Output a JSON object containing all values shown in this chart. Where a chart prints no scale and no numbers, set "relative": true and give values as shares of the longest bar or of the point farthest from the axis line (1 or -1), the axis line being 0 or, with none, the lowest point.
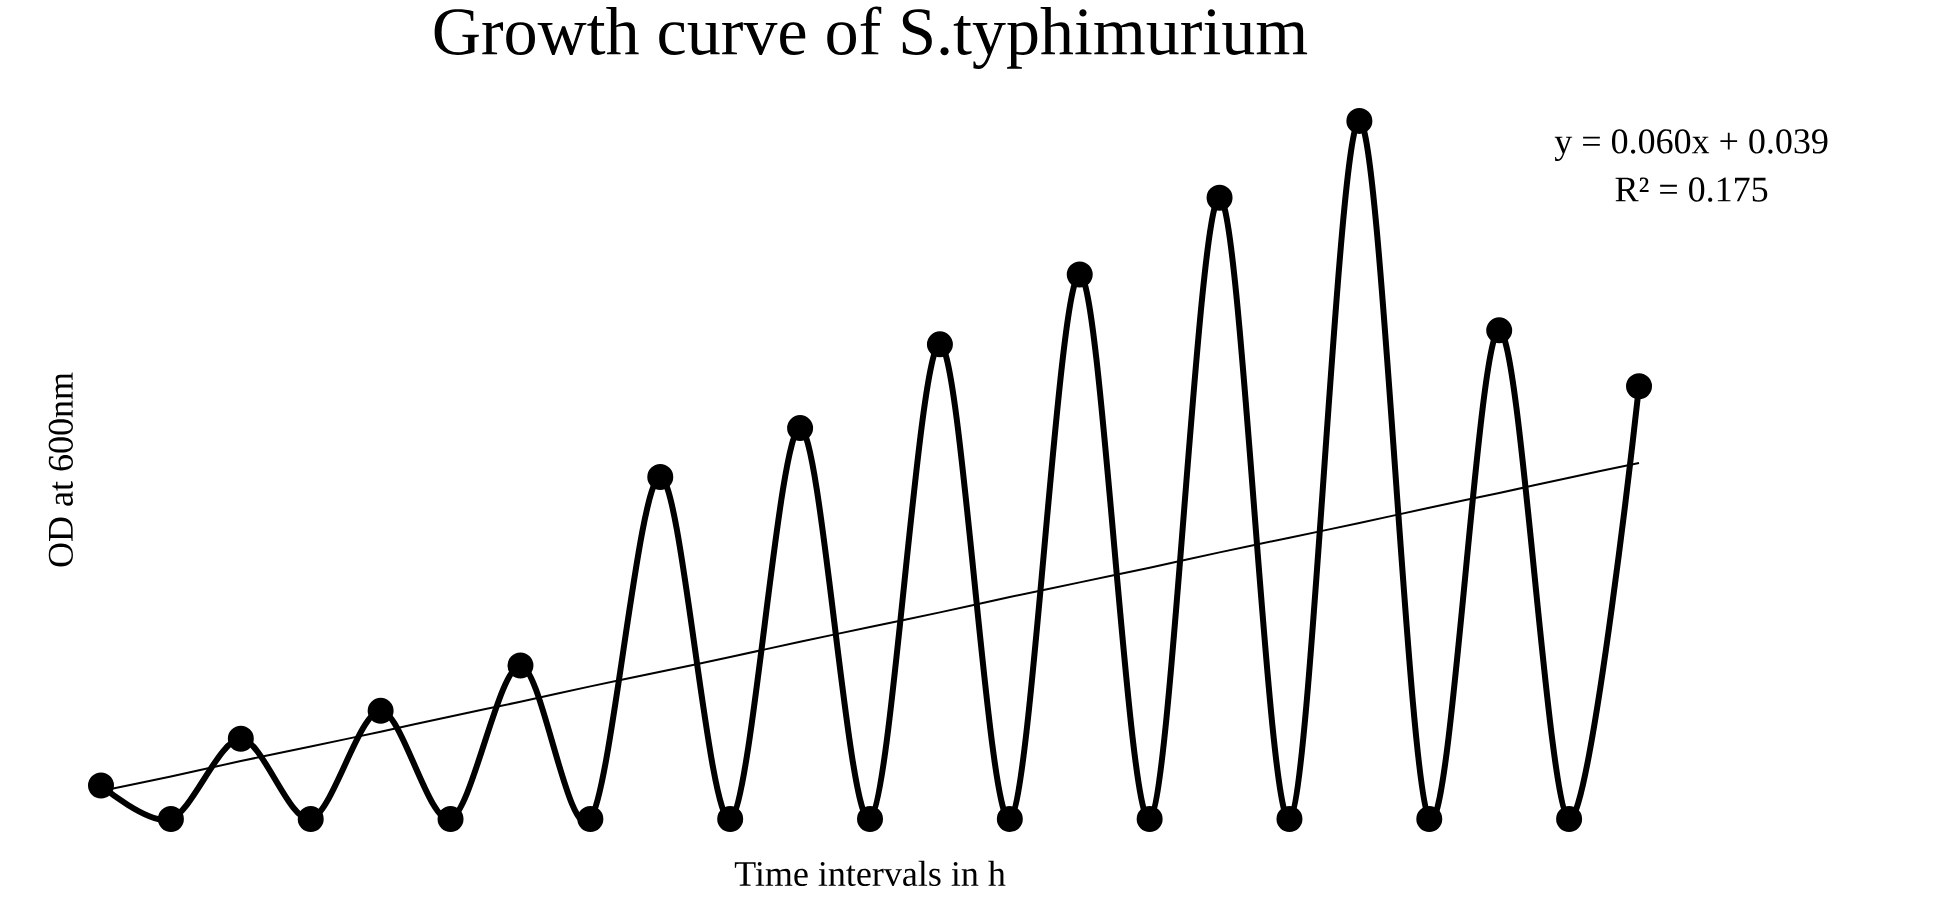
{
  "chart_data": {
    "type": "line",
    "title": "Growth curve of S.typhimurium",
    "xlabel": "Time intervals in h",
    "ylabel": "OD at 600nm",
    "relative": true,
    "marker": "circle",
    "categories": [
      null,
      null,
      null,
      null,
      null,
      null,
      null,
      null,
      null,
      null,
      null,
      null,
      null,
      null,
      null,
      null,
      null,
      null,
      null,
      null,
      null,
      null,
      null
    ],
    "series": [
      {
        "color": "#000000",
        "values": [
          0.048,
          0,
          0.115,
          0,
          0.155,
          0,
          0.22,
          0,
          0.49,
          0,
          0.56,
          0,
          0.68,
          0,
          0.78,
          0,
          0.89,
          0,
          1,
          0,
          0.7,
          0,
          0.62
        ]
      },
      {
        "type": "line",
        "color": "#000000",
        "marker": "none",
        "values": [
          0.04,
          0.061,
          0.083,
          0.104,
          0.125,
          0.147,
          0.168,
          0.19,
          0.211,
          0.232,
          0.254,
          0.275,
          0.296,
          0.318,
          0.339,
          0.36,
          0.382,
          0.403,
          0.424,
          0.446,
          0.467,
          0.489,
          0.51
        ]
      }
    ],
    "annotations": [
      "y = 0.060x + 0.039",
      "R² = 0.175"
    ]
  }
}
